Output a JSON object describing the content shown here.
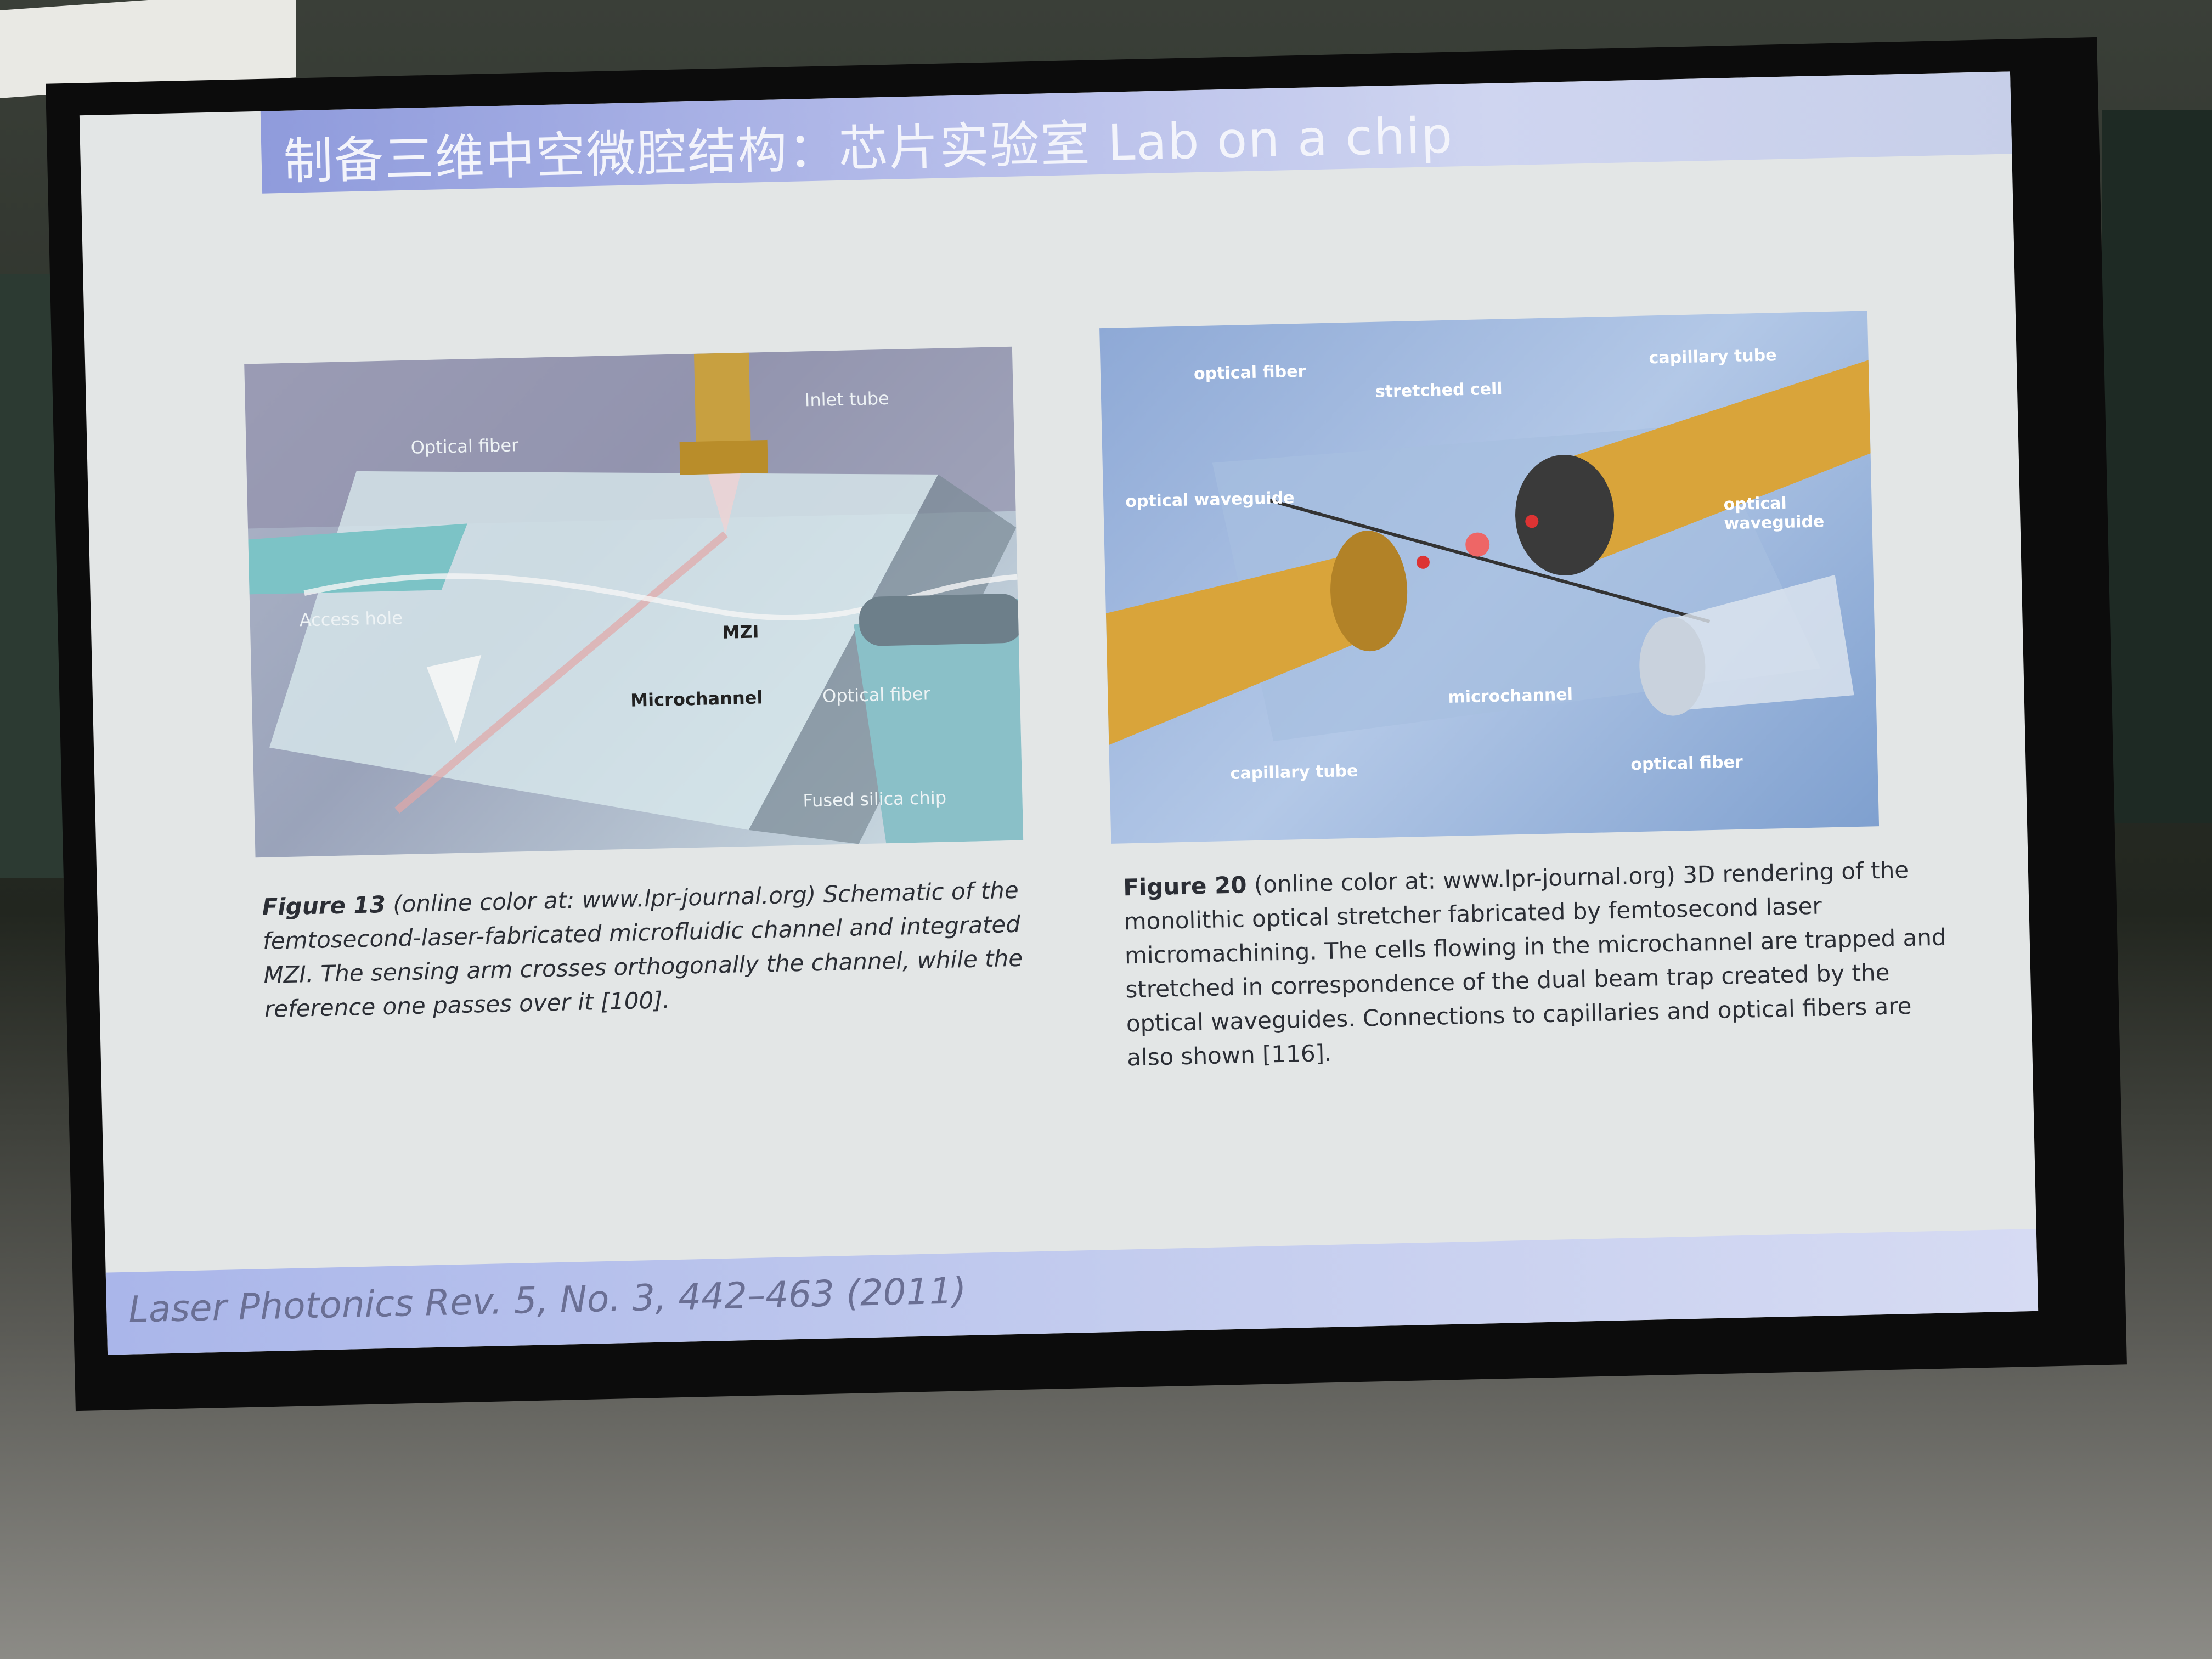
{
  "slide": {
    "title": "制备三维中空微腔结构：芯片实验室 Lab on a chip",
    "citation": "Laser Photonics Rev. 5, No. 3, 442–463 (2011)"
  },
  "figure13": {
    "labels": {
      "inlet_tube": "Inlet tube",
      "optical_fiber_left": "Optical fiber",
      "access_hole": "Access hole",
      "mzi": "MZI",
      "microchannel": "Microchannel",
      "optical_fiber_right": "Optical fiber",
      "fused_silica_chip": "Fused silica chip"
    },
    "caption_number": "Figure 13",
    "caption_text": "(online color at: www.lpr-journal.org) Schematic of the femtosecond-laser-fabricated microfluidic channel and integrated MZI. The sensing arm crosses orthogonally the channel, while the reference one passes over it [100]."
  },
  "figure20": {
    "labels": {
      "optical_fiber_top": "optical fiber",
      "stretched_cell": "stretched cell",
      "capillary_tube_top": "capillary tube",
      "optical_waveguide_left": "optical waveguide",
      "optical_waveguide_right": "optical waveguide",
      "microchannel": "microchannel",
      "capillary_tube_bottom": "capillary tube",
      "optical_fiber_bottom": "optical fiber"
    },
    "caption_number": "Figure 20",
    "caption_text": "(online color at: www.lpr-journal.org) 3D rendering of the monolithic optical stretcher fabricated by femtosecond laser micromachining. The cells flowing in the microchannel are trapped and stretched in correspondence of the dual beam trap created by the optical waveguides. Connections to capillaries and optical fibers are also shown [116]."
  },
  "colors": {
    "title_bar": "#b6bdea",
    "slide_bg": "#e3e6e6",
    "capillary_gold": "#d9a43a"
  }
}
